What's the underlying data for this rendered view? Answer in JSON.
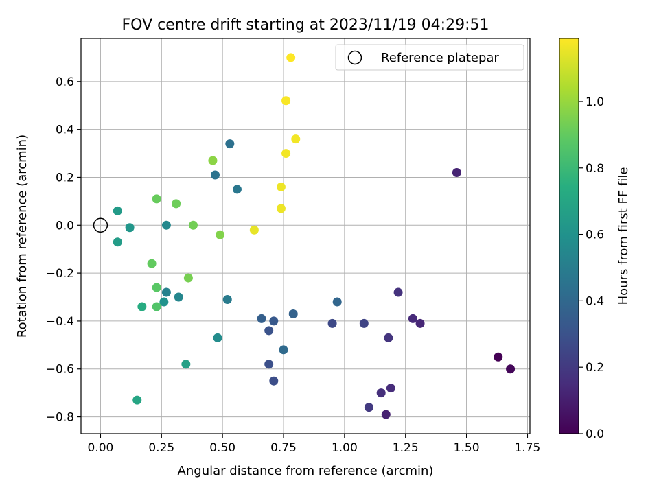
{
  "chart_data": {
    "type": "scatter",
    "title": "FOV centre drift starting at 2023/11/19 04:29:51",
    "xlabel": "Angular distance from reference (arcmin)",
    "ylabel": "Rotation from reference (arcmin)",
    "colorbar_label": "Hours from first FF file",
    "colormap": "viridis",
    "xlim": [
      -0.08,
      1.76
    ],
    "ylim": [
      -0.87,
      0.78
    ],
    "clim": [
      0.0,
      1.19
    ],
    "x_ticks": [
      0.0,
      0.25,
      0.5,
      0.75,
      1.0,
      1.25,
      1.5,
      1.75
    ],
    "x_tick_labels": [
      "0.00",
      "0.25",
      "0.50",
      "0.75",
      "1.00",
      "1.25",
      "1.50",
      "1.75"
    ],
    "y_ticks": [
      -0.8,
      -0.6,
      -0.4,
      -0.2,
      0.0,
      0.2,
      0.4,
      0.6
    ],
    "y_tick_labels": [
      "−0.8",
      "−0.6",
      "−0.4",
      "−0.2",
      "0.0",
      "0.2",
      "0.4",
      "0.6"
    ],
    "colorbar_ticks": [
      0.0,
      0.2,
      0.4,
      0.6,
      0.8,
      1.0
    ],
    "colorbar_tick_labels": [
      "0.0",
      "0.2",
      "0.4",
      "0.6",
      "0.8",
      "1.0"
    ],
    "grid": true,
    "legend": {
      "position": "top-right",
      "entries": [
        "Reference platepar"
      ]
    },
    "reference_point": {
      "x": 0.0,
      "y": 0.0,
      "label": "Reference platepar"
    },
    "points": [
      {
        "x": 1.63,
        "y": -0.55,
        "c": 0.0
      },
      {
        "x": 1.68,
        "y": -0.6,
        "c": 0.02
      },
      {
        "x": 1.17,
        "y": -0.79,
        "c": 0.11
      },
      {
        "x": 1.46,
        "y": 0.22,
        "c": 0.12
      },
      {
        "x": 1.31,
        "y": -0.41,
        "c": 0.13
      },
      {
        "x": 1.28,
        "y": -0.39,
        "c": 0.14
      },
      {
        "x": 1.19,
        "y": -0.68,
        "c": 0.15
      },
      {
        "x": 1.15,
        "y": -0.7,
        "c": 0.16
      },
      {
        "x": 1.22,
        "y": -0.28,
        "c": 0.17
      },
      {
        "x": 1.18,
        "y": -0.47,
        "c": 0.18
      },
      {
        "x": 1.1,
        "y": -0.76,
        "c": 0.2
      },
      {
        "x": 1.08,
        "y": -0.41,
        "c": 0.24
      },
      {
        "x": 0.95,
        "y": -0.41,
        "c": 0.26
      },
      {
        "x": 0.71,
        "y": -0.65,
        "c": 0.28
      },
      {
        "x": 0.69,
        "y": -0.58,
        "c": 0.29
      },
      {
        "x": 0.69,
        "y": -0.44,
        "c": 0.3
      },
      {
        "x": 0.71,
        "y": -0.4,
        "c": 0.33
      },
      {
        "x": 0.66,
        "y": -0.39,
        "c": 0.36
      },
      {
        "x": 0.79,
        "y": -0.37,
        "c": 0.37
      },
      {
        "x": 0.97,
        "y": -0.32,
        "c": 0.39
      },
      {
        "x": 0.75,
        "y": -0.52,
        "c": 0.41
      },
      {
        "x": 0.53,
        "y": 0.34,
        "c": 0.44
      },
      {
        "x": 0.47,
        "y": 0.21,
        "c": 0.45
      },
      {
        "x": 0.56,
        "y": 0.15,
        "c": 0.47
      },
      {
        "x": 0.52,
        "y": -0.31,
        "c": 0.49
      },
      {
        "x": 0.27,
        "y": -0.28,
        "c": 0.52
      },
      {
        "x": 0.32,
        "y": -0.3,
        "c": 0.54
      },
      {
        "x": 0.27,
        "y": 0.0,
        "c": 0.55
      },
      {
        "x": 0.48,
        "y": -0.47,
        "c": 0.57
      },
      {
        "x": 0.26,
        "y": -0.32,
        "c": 0.6
      },
      {
        "x": 0.12,
        "y": -0.01,
        "c": 0.62
      },
      {
        "x": 0.07,
        "y": 0.06,
        "c": 0.64
      },
      {
        "x": 0.07,
        "y": -0.07,
        "c": 0.65
      },
      {
        "x": 0.35,
        "y": -0.58,
        "c": 0.67
      },
      {
        "x": 0.15,
        "y": -0.73,
        "c": 0.7
      },
      {
        "x": 0.17,
        "y": -0.34,
        "c": 0.73
      },
      {
        "x": 0.23,
        "y": -0.34,
        "c": 0.86
      },
      {
        "x": 0.23,
        "y": -0.26,
        "c": 0.88
      },
      {
        "x": 0.21,
        "y": -0.16,
        "c": 0.9
      },
      {
        "x": 0.23,
        "y": 0.11,
        "c": 0.91
      },
      {
        "x": 0.31,
        "y": 0.09,
        "c": 0.92
      },
      {
        "x": 0.38,
        "y": 0.0,
        "c": 0.93
      },
      {
        "x": 0.36,
        "y": -0.22,
        "c": 0.94
      },
      {
        "x": 0.49,
        "y": -0.04,
        "c": 0.96
      },
      {
        "x": 0.46,
        "y": 0.27,
        "c": 0.98
      },
      {
        "x": 0.63,
        "y": -0.02,
        "c": 1.15
      },
      {
        "x": 0.74,
        "y": 0.07,
        "c": 1.16
      },
      {
        "x": 0.74,
        "y": 0.16,
        "c": 1.16
      },
      {
        "x": 0.76,
        "y": 0.3,
        "c": 1.17
      },
      {
        "x": 0.8,
        "y": 0.36,
        "c": 1.17
      },
      {
        "x": 0.76,
        "y": 0.52,
        "c": 1.18
      },
      {
        "x": 0.78,
        "y": 0.7,
        "c": 1.19
      }
    ]
  }
}
